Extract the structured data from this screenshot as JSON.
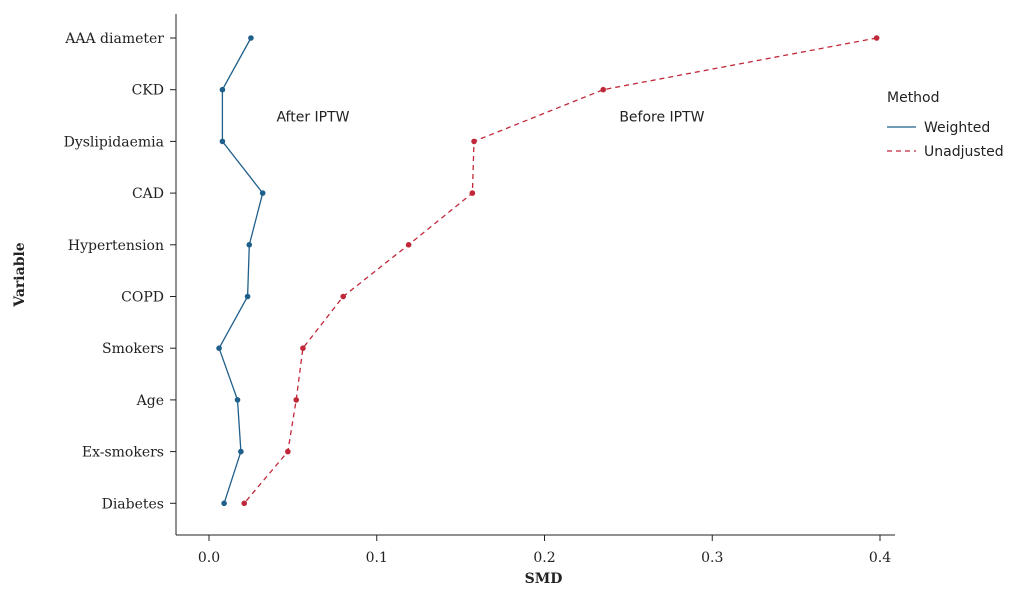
{
  "chart_data": {
    "type": "line",
    "title": "",
    "xlabel": "SMD",
    "ylabel": "Variable",
    "xlim": [
      -0.02,
      0.42
    ],
    "x_ticks": [
      0.0,
      0.1,
      0.2,
      0.3,
      0.4
    ],
    "x_tick_labels": [
      "0.0",
      "0.1",
      "0.2",
      "0.3",
      "0.4"
    ],
    "categories": [
      "AAA diameter",
      "CKD",
      "Dyslipidaemia",
      "CAD",
      "Hypertension",
      "COPD",
      "Smokers",
      "Age",
      "Ex-smokers",
      "Diabetes"
    ],
    "series": [
      {
        "name": "Weighted",
        "color": "#1f5f8b",
        "line_style": "solid",
        "values": [
          0.025,
          0.008,
          0.008,
          0.032,
          0.024,
          0.023,
          0.006,
          0.017,
          0.019,
          0.009
        ]
      },
      {
        "name": "Unadjusted",
        "color": "#c0283a",
        "line_style": "dashed",
        "values": [
          0.398,
          0.235,
          0.158,
          0.157,
          0.119,
          0.08,
          0.056,
          0.052,
          0.047,
          0.021
        ]
      }
    ],
    "annotations": [
      {
        "text": "After IPTW",
        "x": 0.062,
        "category": "CKD"
      },
      {
        "text": "Before IPTW",
        "x": 0.27,
        "category": "CKD"
      }
    ],
    "legend": {
      "title": "Method",
      "placement": "right"
    },
    "grid": false
  }
}
